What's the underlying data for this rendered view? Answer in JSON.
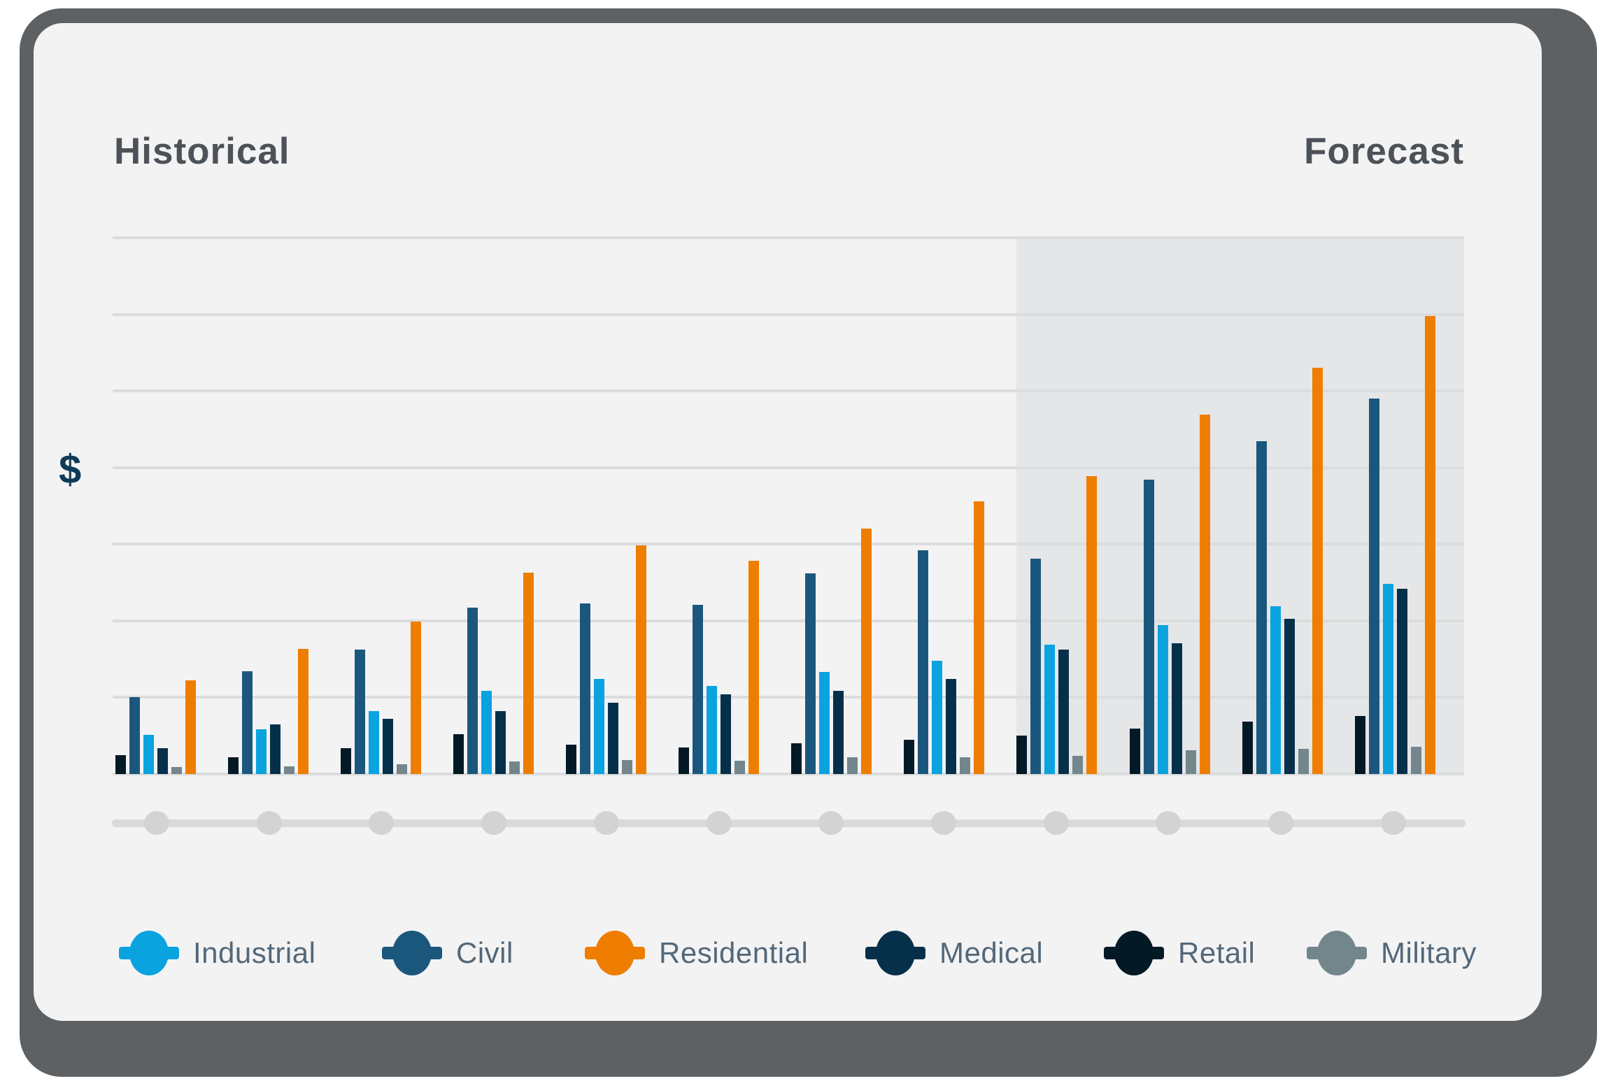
{
  "header": {
    "historical_label": "Historical",
    "forecast_label": "Forecast"
  },
  "y_axis": {
    "label": "$"
  },
  "chart_data": {
    "type": "bar",
    "title": "",
    "xlabel": "",
    "ylabel": "$",
    "ylim": [
      0,
      7
    ],
    "gridlines": true,
    "gridline_count": 8,
    "group_count": 12,
    "x_tick_labels": [
      "",
      "",
      "",
      "",
      "",
      "",
      "",
      "",
      "",
      "",
      "",
      ""
    ],
    "historical_groups": [
      1,
      2,
      3,
      4,
      5,
      6,
      7,
      8
    ],
    "forecast_groups": [
      9,
      10,
      11,
      12
    ],
    "bar_order": [
      "Retail",
      "Civil",
      "Industrial",
      "Medical",
      "Military",
      "Residential"
    ],
    "series": [
      {
        "name": "Industrial",
        "color": "#0aa3e0",
        "values": [
          0.51,
          0.58,
          0.82,
          1.09,
          1.24,
          1.15,
          1.33,
          1.48,
          1.69,
          1.94,
          2.19,
          2.48
        ]
      },
      {
        "name": "Civil",
        "color": "#1b577d",
        "values": [
          1.0,
          1.34,
          1.62,
          2.17,
          2.23,
          2.21,
          2.62,
          2.92,
          2.81,
          3.84,
          4.34,
          4.9
        ]
      },
      {
        "name": "Residential",
        "color": "#ee7d00",
        "values": [
          1.22,
          1.63,
          1.99,
          2.63,
          2.98,
          2.78,
          3.2,
          3.56,
          3.89,
          4.69,
          5.3,
          5.98
        ]
      },
      {
        "name": "Medical",
        "color": "#06304a",
        "values": [
          0.34,
          0.65,
          0.72,
          0.82,
          0.93,
          1.04,
          1.09,
          1.24,
          1.62,
          1.71,
          2.03,
          2.42
        ]
      },
      {
        "name": "Retail",
        "color": "#041926",
        "values": [
          0.25,
          0.22,
          0.34,
          0.52,
          0.38,
          0.35,
          0.4,
          0.45,
          0.5,
          0.59,
          0.68,
          0.76
        ]
      },
      {
        "name": "Military",
        "color": "#72868c",
        "values": [
          0.09,
          0.1,
          0.13,
          0.16,
          0.18,
          0.17,
          0.22,
          0.22,
          0.24,
          0.31,
          0.33,
          0.36
        ]
      }
    ]
  },
  "legend": {
    "items": [
      {
        "label": "Industrial",
        "color": "#0aa3e0"
      },
      {
        "label": "Civil",
        "color": "#1b577d"
      },
      {
        "label": "Residential",
        "color": "#ee7d00"
      },
      {
        "label": "Medical",
        "color": "#06304a"
      },
      {
        "label": "Retail",
        "color": "#041926"
      },
      {
        "label": "Military",
        "color": "#72868c"
      }
    ]
  },
  "colors": {
    "card_background": "#f3f3f4",
    "card_shadow": "#5e6163",
    "forecast_region": "#e5e6e8",
    "gridline": "#dbdcdd",
    "timeline": "#d2d3d4",
    "title_text": "#4c5257",
    "legend_text": "#53687a",
    "dollar_text": "#0e3a56"
  }
}
